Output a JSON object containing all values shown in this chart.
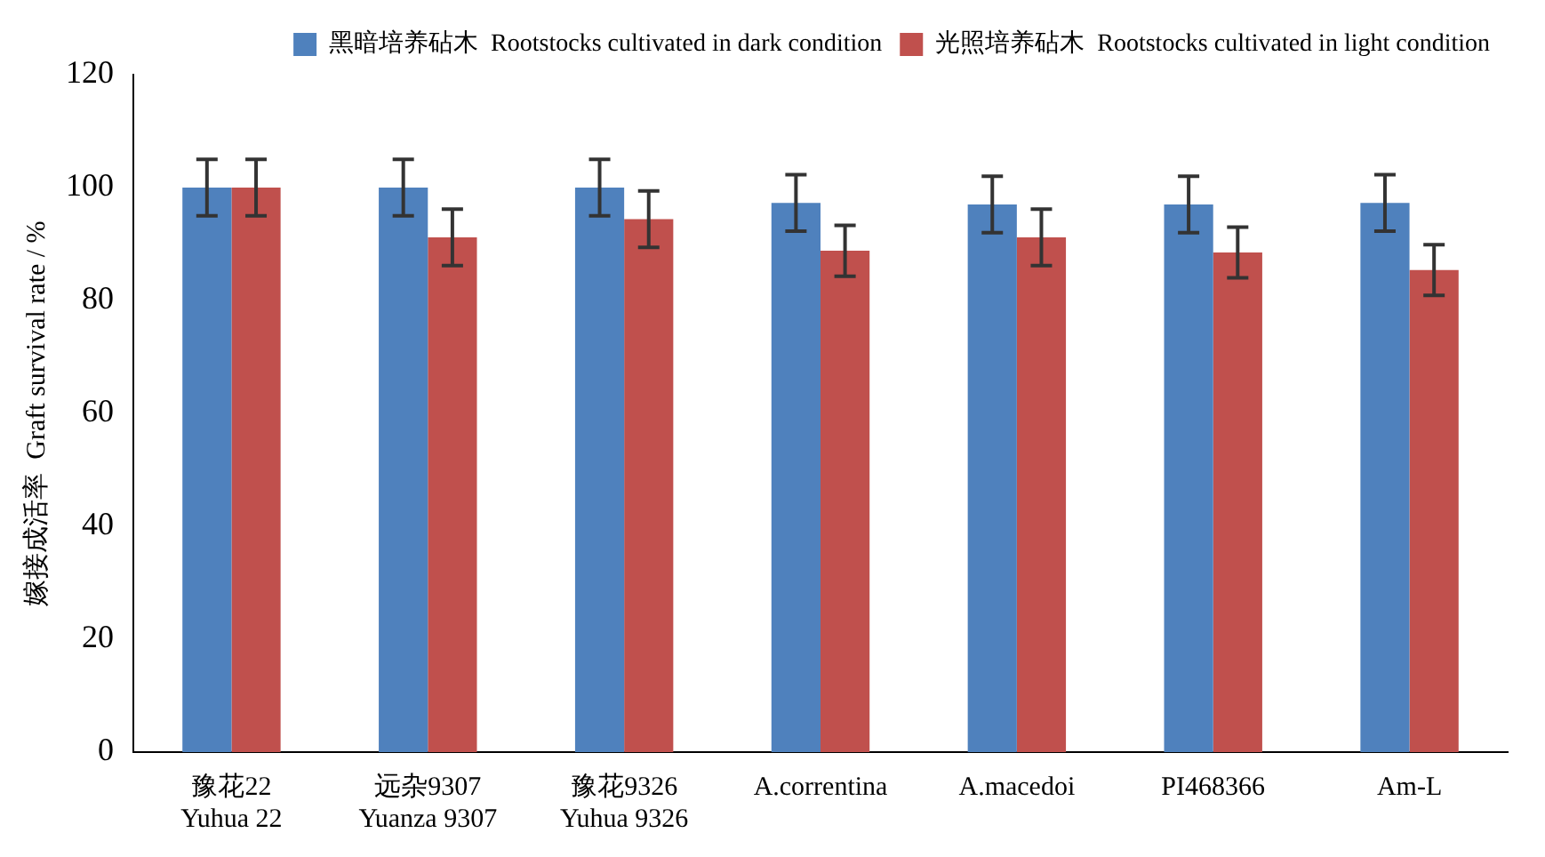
{
  "chart_data": {
    "type": "bar",
    "ylabel": "嫁接成活率  Graft survival rate / %",
    "categories": [
      "豫花22\nYuhua 22",
      "远杂9307\nYuanza 9307",
      "豫花9326\nYuhua 9326",
      "A.correntina",
      "A.macedoi",
      "PI468366",
      "Am-L"
    ],
    "series": [
      {
        "name": "黑暗培养砧木  Rootstocks cultivated in dark condition",
        "color": "#4f81bd",
        "values": [
          100,
          100,
          100,
          97.3,
          97,
          97,
          97.3
        ],
        "errors": [
          5,
          5,
          5,
          5,
          5,
          5,
          5
        ]
      },
      {
        "name": "光照培养砧木  Rootstocks cultivated in light condition",
        "color": "#c0504d",
        "values": [
          100,
          91.2,
          94.4,
          88.8,
          91.2,
          88.5,
          85.4
        ],
        "errors": [
          5,
          5,
          5,
          4.5,
          5,
          4.5,
          4.5
        ]
      }
    ],
    "ylim": [
      0,
      120
    ],
    "yticks": [
      0,
      20,
      40,
      60,
      80,
      100,
      120
    ],
    "grid": false,
    "legend": "top right"
  }
}
